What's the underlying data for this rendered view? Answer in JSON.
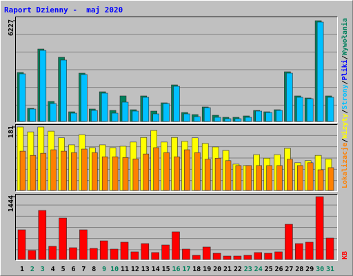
{
  "legend_separator": "/",
  "chart_data": [
    {
      "type": "bar",
      "title": "Raport Dzienny -  maj 2020",
      "ylim": [
        0,
        6227
      ],
      "yticks": [
        6227
      ],
      "grid": true,
      "legend": [
        {
          "name": "Strony",
          "color": "#00c0ff"
        },
        {
          "name": "Pliki",
          "color": "#0000ff"
        },
        {
          "name": "Wywołania",
          "color": "#00805c"
        }
      ],
      "series": [
        {
          "color": "#00805c",
          "values": [
            3028,
            810,
            4478,
            1237,
            3966,
            597,
            2985,
            768,
            1834,
            682,
            1578,
            725,
            1578,
            640,
            1152,
            2260,
            554,
            426,
            896,
            384,
            256,
            256,
            341,
            682,
            597,
            725,
            3071,
            1578,
            1450,
            6227,
            1578
          ]
        },
        {
          "color": "#00c0ff",
          "values": [
            2943,
            768,
            4393,
            1109,
            3796,
            512,
            2900,
            682,
            1749,
            512,
            1194,
            640,
            1493,
            469,
            1109,
            2175,
            469,
            299,
            853,
            256,
            171,
            171,
            256,
            640,
            554,
            682,
            2986,
            1493,
            1407,
            6142,
            1493
          ]
        }
      ]
    },
    {
      "type": "bar",
      "ylim": [
        0,
        181
      ],
      "yticks": [
        181
      ],
      "grid": true,
      "legend": [
        {
          "name": "Lokalizacje",
          "color": "#ff8000"
        },
        {
          "name": "Wizyty",
          "color": "#ffff00"
        }
      ],
      "series": [
        {
          "color": "#ffff00",
          "values": [
            181,
            167,
            181,
            169,
            150,
            130,
            159,
            122,
            130,
            122,
            126,
            138,
            151,
            171,
            138,
            151,
            140,
            150,
            134,
            124,
            114,
            75,
            71,
            102,
            92,
            102,
            120,
            79,
            85,
            100,
            90
          ]
        },
        {
          "color": "#ff8000",
          "values": [
            112,
            100,
            106,
            116,
            112,
            108,
            118,
            108,
            96,
            96,
            94,
            90,
            104,
            122,
            108,
            96,
            116,
            108,
            89,
            92,
            85,
            71,
            71,
            71,
            71,
            71,
            89,
            71,
            79,
            59,
            65
          ]
        }
      ]
    },
    {
      "type": "bar",
      "ylim": [
        0,
        1444
      ],
      "yticks": [
        1444
      ],
      "grid": true,
      "legend": [
        {
          "name": "KB",
          "color": "#ff0000"
        }
      ],
      "series": [
        {
          "color": "#ff0000",
          "values": [
            682,
            206,
            1127,
            302,
            952,
            270,
            682,
            254,
            428,
            238,
            397,
            175,
            365,
            159,
            333,
            635,
            238,
            95,
            286,
            143,
            79,
            79,
            95,
            159,
            143,
            175,
            809,
            365,
            397,
            1444,
            492
          ]
        }
      ],
      "categories": [
        1,
        2,
        3,
        4,
        5,
        6,
        7,
        8,
        9,
        10,
        11,
        12,
        13,
        14,
        15,
        16,
        17,
        18,
        19,
        20,
        21,
        22,
        23,
        24,
        25,
        26,
        27,
        28,
        29,
        30,
        31
      ],
      "category_colors": [
        "#000000",
        "#00805c",
        "#00805c",
        "#000000",
        "#000000",
        "#000000",
        "#000000",
        "#000000",
        "#00805c",
        "#00805c",
        "#000000",
        "#000000",
        "#000000",
        "#000000",
        "#000000",
        "#00805c",
        "#00805c",
        "#000000",
        "#000000",
        "#000000",
        "#000000",
        "#000000",
        "#00805c",
        "#00805c",
        "#000000",
        "#000000",
        "#000000",
        "#000000",
        "#000000",
        "#00805c",
        "#00805c"
      ]
    }
  ]
}
